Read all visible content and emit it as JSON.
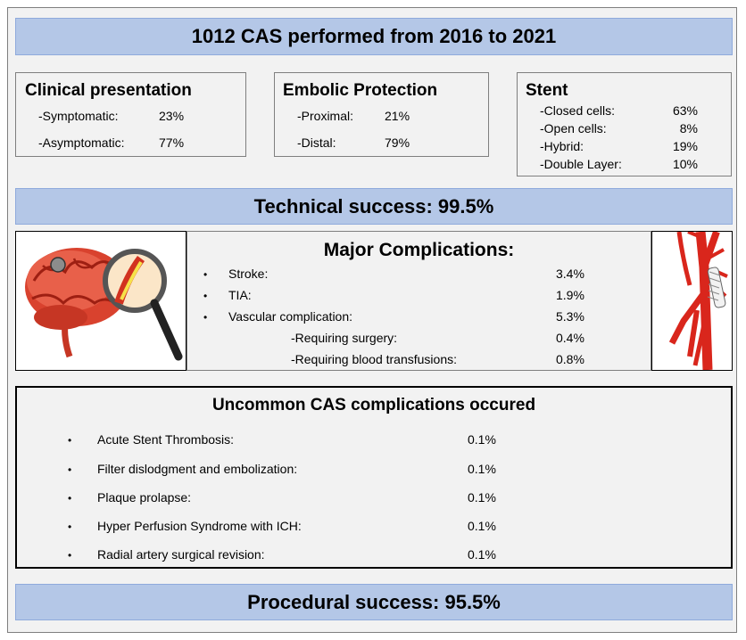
{
  "header": {
    "title": "1012 CAS performed from 2016 to 2021"
  },
  "clinical": {
    "title": "Clinical presentation",
    "rows": [
      {
        "label": "-Symptomatic:",
        "value": "23%"
      },
      {
        "label": "-Asymptomatic:",
        "value": "77%"
      }
    ]
  },
  "embolic": {
    "title": "Embolic Protection",
    "rows": [
      {
        "label": "-Proximal:",
        "value": "21%"
      },
      {
        "label": "-Distal:",
        "value": "79%"
      }
    ]
  },
  "stent": {
    "title": "Stent",
    "rows": [
      {
        "label": "-Closed cells:",
        "value": "63%"
      },
      {
        "label": "-Open cells:",
        "value": "8%"
      },
      {
        "label": "-Hybrid:",
        "value": "19%"
      },
      {
        "label": "-Double Layer:",
        "value": "10%"
      }
    ]
  },
  "technical": {
    "text": "Technical success: 99.5%"
  },
  "major": {
    "title": "Major Complications:",
    "bullet": "•",
    "rows": [
      {
        "label": "Stroke:",
        "value": "3.4%"
      },
      {
        "label": "TIA:",
        "value": "1.9%"
      },
      {
        "label": "Vascular complication:",
        "value": "5.3%"
      },
      {
        "label": "-Requiring surgery:",
        "value": "0.4%"
      },
      {
        "label": "-Requiring blood transfusions:",
        "value": "0.8%"
      }
    ]
  },
  "uncommon": {
    "title": "Uncommon CAS complications occured",
    "bullet": "•",
    "rows": [
      {
        "label": "Acute Stent Thrombosis:",
        "value": "0.1%"
      },
      {
        "label": "Filter dislodgment and embolization:",
        "value": "0.1%"
      },
      {
        "label": "Plaque prolapse:",
        "value": "0.1%"
      },
      {
        "label": "Hyper Perfusion Syndrome with ICH:",
        "value": "0.1%"
      },
      {
        "label": "Radial artery surgical revision:",
        "value": "0.1%"
      }
    ]
  },
  "procedural": {
    "text": "Procedural success: 95.5%"
  }
}
